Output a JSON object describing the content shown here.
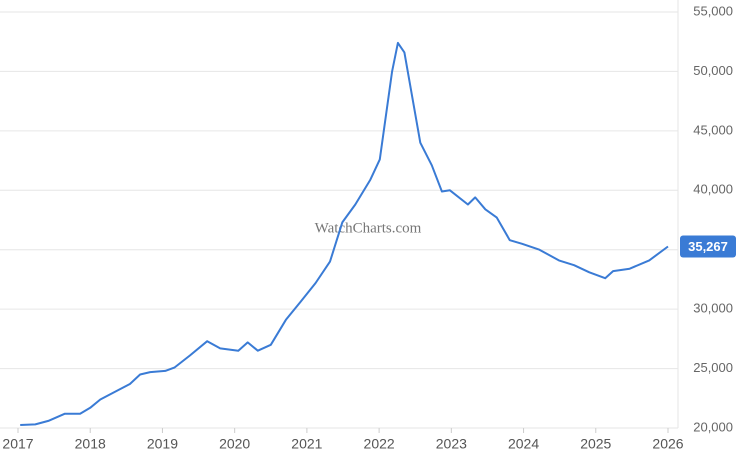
{
  "chart_data": {
    "type": "line",
    "watermark": "WatchCharts.com",
    "x": [
      2017.03,
      2017.24,
      2017.42,
      2017.65,
      2017.86,
      2018.0,
      2018.14,
      2018.39,
      2018.55,
      2018.69,
      2018.83,
      2019.04,
      2019.17,
      2019.38,
      2019.62,
      2019.8,
      2020.05,
      2020.18,
      2020.32,
      2020.5,
      2020.71,
      2020.91,
      2021.12,
      2021.32,
      2021.49,
      2021.67,
      2021.88,
      2022.01,
      2022.18,
      2022.26,
      2022.35,
      2022.57,
      2022.73,
      2022.87,
      2022.98,
      2023.23,
      2023.33,
      2023.47,
      2023.63,
      2023.81,
      2023.98,
      2024.22,
      2024.49,
      2024.7,
      2024.91,
      2025.13,
      2025.24,
      2025.47,
      2025.74,
      2026.0
    ],
    "series": [
      {
        "color": "#3a7bd5",
        "values": [
          20250,
          20300,
          20600,
          21200,
          21200,
          21700,
          22400,
          23200,
          23700,
          24500,
          24700,
          24800,
          25100,
          26100,
          27300,
          26700,
          26500,
          27200,
          26500,
          27000,
          29100,
          30600,
          32200,
          34000,
          37300,
          38800,
          40900,
          42600,
          50000,
          52400,
          51600,
          44000,
          42100,
          39900,
          40000,
          38800,
          39400,
          38400,
          37700,
          35800,
          35500,
          35000,
          34100,
          33700,
          33100,
          32600,
          33200,
          33400,
          34100,
          35267
        ]
      }
    ],
    "last_value_label": "35,267",
    "xlim": [
      2017,
      2026
    ],
    "xticks": [
      2017,
      2018,
      2019,
      2020,
      2021,
      2022,
      2023,
      2024,
      2025,
      2026
    ],
    "ylim": [
      20000,
      55000
    ],
    "yticks": [
      {
        "value": 20000,
        "label": "20,000"
      },
      {
        "value": 25000,
        "label": "25,000"
      },
      {
        "value": 30000,
        "label": "30,000"
      },
      {
        "value": 35000,
        "label": "35,000"
      },
      {
        "value": 40000,
        "label": "40,000"
      },
      {
        "value": 45000,
        "label": "45,000"
      },
      {
        "value": 50000,
        "label": "50,000"
      },
      {
        "value": 55000,
        "label": "55,000"
      }
    ],
    "grid": true
  }
}
